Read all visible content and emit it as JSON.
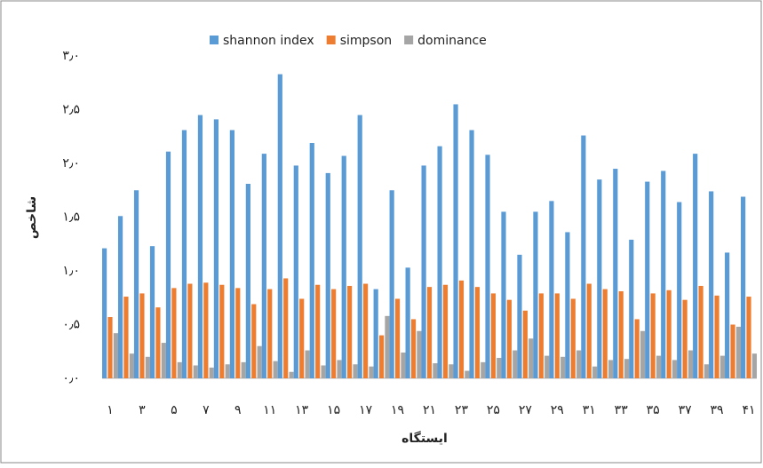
{
  "chart_data": {
    "type": "bar",
    "y_label": "شاخص",
    "x_label": "ایستگاه",
    "categories": [
      "۱",
      null,
      "۳",
      null,
      "۵",
      null,
      "۷",
      null,
      "۹",
      null,
      "۱۱",
      null,
      "۱۳",
      null,
      "۱۵",
      null,
      "۱۷",
      null,
      "۱۹",
      null,
      "۲۱",
      null,
      "۲۳",
      null,
      "۲۵",
      null,
      "۲۷",
      null,
      "۲۹",
      null,
      "۳۱",
      null,
      "۳۳",
      null,
      "۳۵",
      null,
      "۳۷",
      null,
      "۳۹",
      null,
      "۴۱"
    ],
    "series": [
      {
        "name": "shannon index",
        "color": "#5b9bd5",
        "values": [
          1.21,
          1.51,
          1.75,
          1.23,
          2.11,
          2.31,
          2.45,
          2.41,
          2.31,
          1.81,
          2.09,
          2.83,
          1.98,
          2.19,
          1.91,
          2.07,
          2.45,
          0.83,
          1.75,
          1.03,
          1.98,
          2.16,
          2.55,
          2.31,
          2.08,
          1.55,
          1.15,
          1.55,
          1.65,
          1.36,
          2.26,
          1.85,
          1.95,
          1.29,
          1.83,
          1.93,
          1.64,
          2.09,
          1.74,
          1.17,
          1.69
        ]
      },
      {
        "name": "simpson",
        "color": "#ed7d31",
        "values": [
          0.57,
          0.76,
          0.79,
          0.66,
          0.84,
          0.88,
          0.89,
          0.87,
          0.84,
          0.69,
          0.83,
          0.93,
          0.74,
          0.87,
          0.83,
          0.86,
          0.88,
          0.4,
          0.74,
          0.55,
          0.85,
          0.87,
          0.91,
          0.85,
          0.79,
          0.73,
          0.63,
          0.79,
          0.79,
          0.74,
          0.88,
          0.83,
          0.81,
          0.55,
          0.79,
          0.82,
          0.73,
          0.86,
          0.77,
          0.5,
          0.76
        ]
      },
      {
        "name": "dominance",
        "color": "#a5a5a5",
        "values": [
          0.42,
          0.23,
          0.2,
          0.33,
          0.15,
          0.12,
          0.1,
          0.13,
          0.15,
          0.3,
          0.16,
          0.06,
          0.26,
          0.12,
          0.17,
          0.13,
          0.11,
          0.58,
          0.24,
          0.44,
          0.14,
          0.13,
          0.07,
          0.15,
          0.19,
          0.26,
          0.37,
          0.21,
          0.2,
          0.26,
          0.11,
          0.17,
          0.18,
          0.44,
          0.21,
          0.17,
          0.26,
          0.13,
          0.21,
          0.48,
          0.23
        ]
      }
    ],
    "ylim": [
      0,
      3
    ],
    "yticks": [
      {
        "value": 0,
        "label": "۰٫۰"
      },
      {
        "value": 0.5,
        "label": "۰٫۵"
      },
      {
        "value": 1,
        "label": "۱٫۰"
      },
      {
        "value": 1.5,
        "label": "۱٫۵"
      },
      {
        "value": 2,
        "label": "۲٫۰"
      },
      {
        "value": 2.5,
        "label": "۲٫۵"
      },
      {
        "value": 3,
        "label": "۳٫۰"
      }
    ],
    "grid": false,
    "legend": "top"
  }
}
